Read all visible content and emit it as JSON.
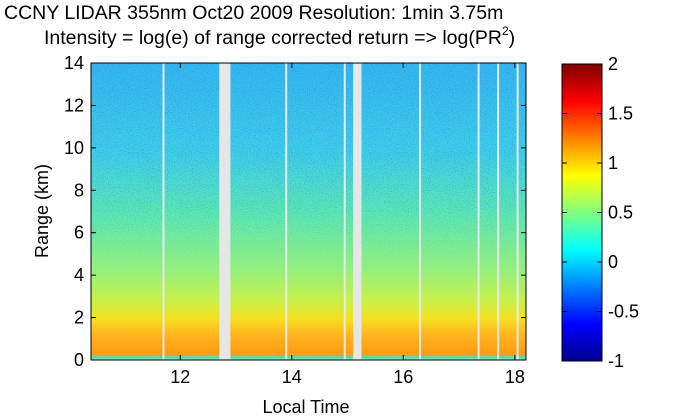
{
  "chart_data": {
    "type": "heatmap",
    "title": "CCNY LIDAR 355nm Oct20 2009 Resolution: 1min 3.75m",
    "subtitle_prefix": "Intensity = log(e) of range corrected return => log(PR",
    "subtitle_superscript": "2",
    "subtitle_suffix": ")",
    "xlabel": "Local Time",
    "ylabel": "Range (km)",
    "xlim": [
      10.4,
      18.2
    ],
    "ylim": [
      0,
      14
    ],
    "xticks": [
      12,
      14,
      16,
      18
    ],
    "yticks": [
      0,
      2,
      4,
      6,
      8,
      10,
      12,
      14
    ],
    "colorbar": {
      "range": [
        -1,
        2
      ],
      "ticks": [
        "2",
        "1.5",
        "1",
        "0.5",
        "0",
        "-0.5",
        "-1"
      ],
      "colormap": "jet"
    },
    "data_gaps_local_time": [
      {
        "from": 12.7,
        "to": 12.9
      },
      {
        "from": 15.1,
        "to": 15.25
      }
    ],
    "thin_gap_lines_local_time": [
      11.7,
      13.9,
      14.95,
      16.3,
      17.35,
      17.7,
      18.05
    ],
    "profile_description": [
      {
        "range_km": [
          0,
          0.2
        ],
        "value": 0.2
      },
      {
        "range_km": [
          0.3,
          1.8
        ],
        "value": 1.2
      },
      {
        "range_km": [
          2,
          4
        ],
        "value": 0.7
      },
      {
        "range_km": [
          4,
          8
        ],
        "value": 0.45
      },
      {
        "range_km": [
          8,
          14
        ],
        "value": 0.3
      }
    ]
  }
}
